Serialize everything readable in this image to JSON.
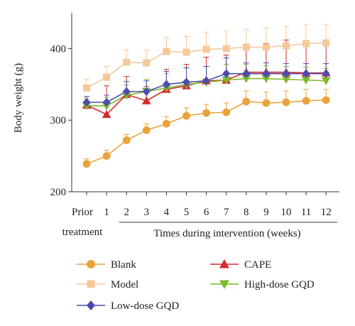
{
  "chart_data": {
    "type": "line",
    "ylabel": "Body weight (g)",
    "xlabel": "Times during intervention (weeks)",
    "ylim": [
      200,
      450
    ],
    "yticks": [
      200,
      300,
      400
    ],
    "categories": [
      "Prior",
      "1",
      "2",
      "3",
      "4",
      "5",
      "6",
      "7",
      "8",
      "9",
      "10",
      "11",
      "12"
    ],
    "category_sublabel": "treatment",
    "grid": false,
    "legend_position": "bottom",
    "series": [
      {
        "name": "Blank",
        "color": "#e8a33a",
        "marker": "circle",
        "values": [
          239,
          250,
          272,
          286,
          295,
          306,
          310,
          311,
          326,
          324,
          325,
          327,
          328
        ],
        "errors": [
          7,
          8,
          8,
          9,
          10,
          11,
          12,
          13,
          15,
          15,
          16,
          16,
          15
        ]
      },
      {
        "name": "Model",
        "color": "#f5c89a",
        "marker": "square",
        "values": [
          345,
          360,
          381,
          380,
          396,
          395,
          399,
          400,
          402,
          402,
          404,
          407,
          408
        ],
        "errors": [
          12,
          15,
          17,
          18,
          20,
          22,
          24,
          25,
          25,
          27,
          27,
          27,
          26
        ]
      },
      {
        "name": "CAPE",
        "color": "#d42b2b",
        "marker": "triangle-up",
        "values": [
          321,
          308,
          336,
          327,
          343,
          348,
          355,
          356,
          367,
          367,
          367,
          366,
          366
        ],
        "errors": [
          12,
          40,
          25,
          20,
          28,
          30,
          33,
          35,
          38,
          40,
          45,
          45,
          40
        ]
      },
      {
        "name": "High-dose GQD",
        "color": "#7cba2e",
        "marker": "triangle-down",
        "values": [
          320,
          320,
          335,
          340,
          345,
          350,
          353,
          356,
          358,
          358,
          357,
          356,
          355
        ],
        "errors": [
          10,
          12,
          14,
          17,
          20,
          23,
          22,
          22,
          20,
          18,
          18,
          18,
          17
        ]
      },
      {
        "name": "Low-dose GQD",
        "color": "#4c4caf",
        "marker": "diamond",
        "values": [
          325,
          325,
          340,
          340,
          350,
          353,
          355,
          365,
          365,
          365,
          365,
          365,
          365
        ],
        "errors": [
          8,
          10,
          14,
          15,
          18,
          20,
          20,
          22,
          15,
          15,
          14,
          14,
          14
        ]
      }
    ]
  }
}
